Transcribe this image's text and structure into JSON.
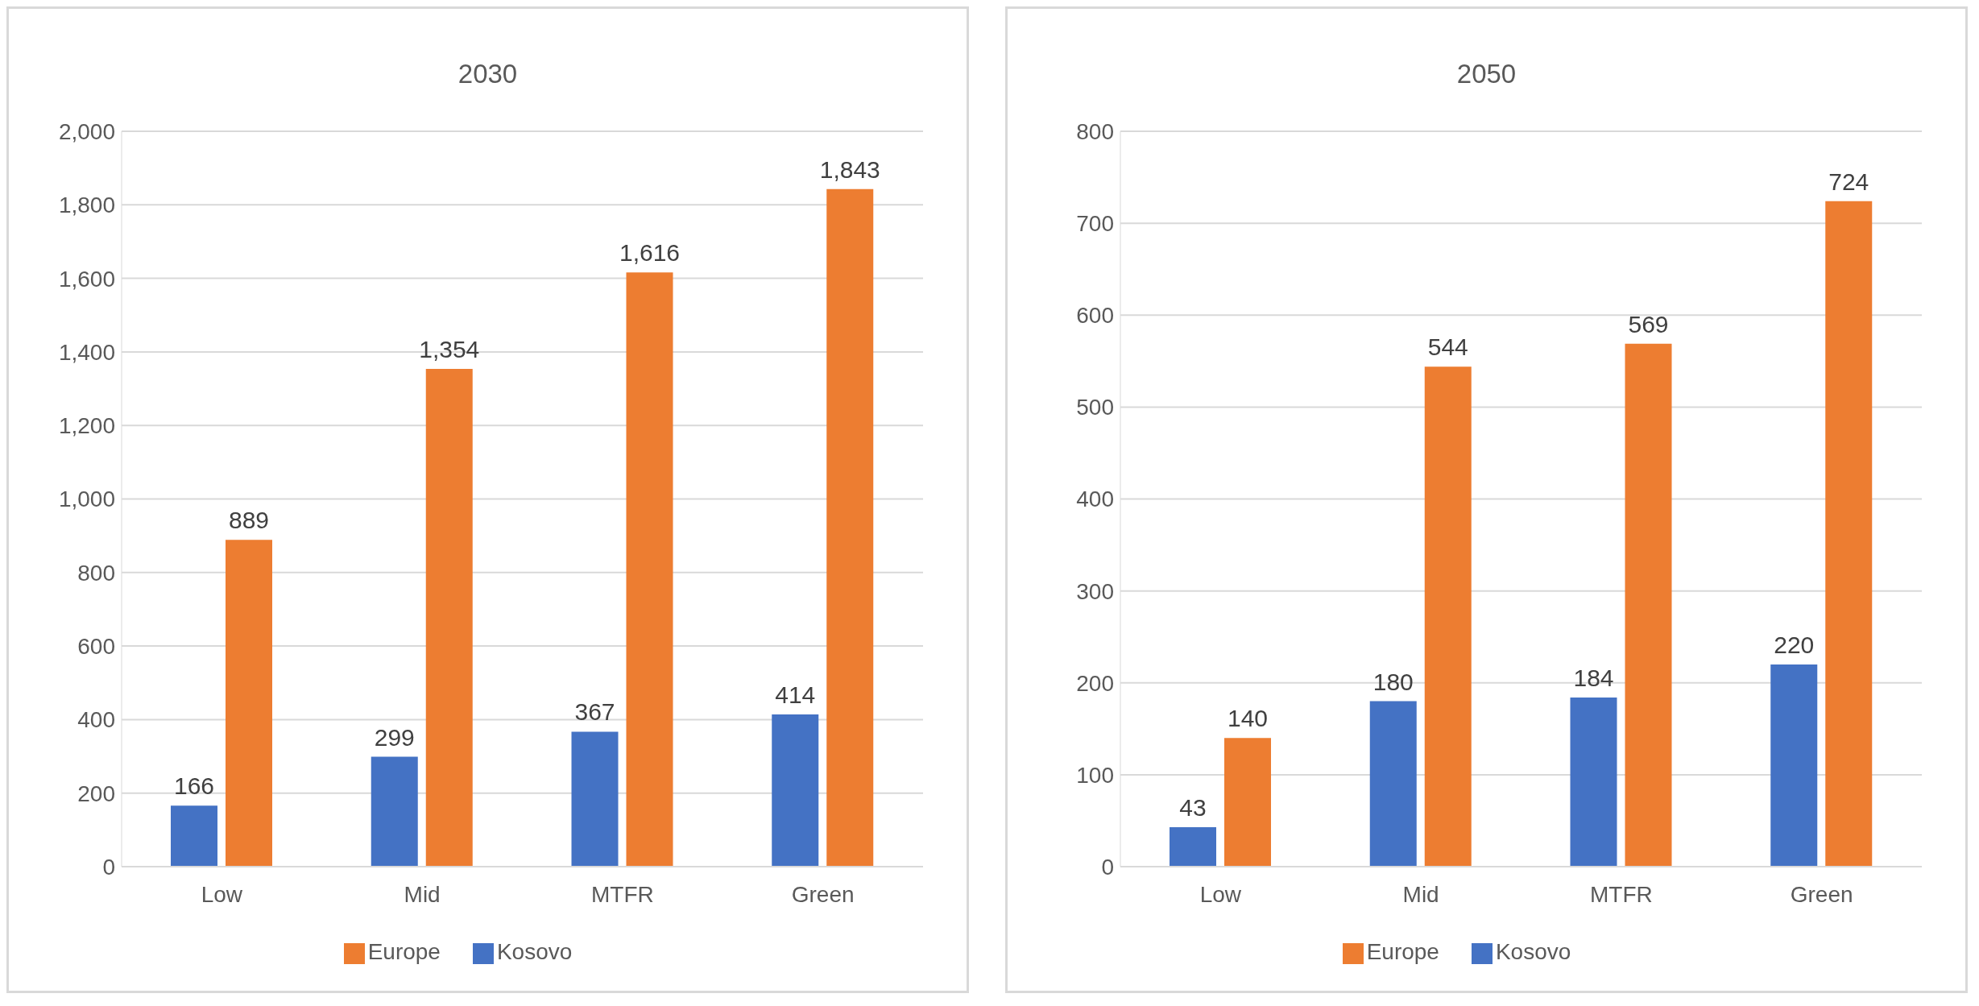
{
  "chart_data": [
    {
      "type": "bar",
      "title": "2030",
      "categories": [
        "Low",
        "Mid",
        "MTFR",
        "Green"
      ],
      "series": [
        {
          "name": "Kosovo",
          "color": "#4472c4",
          "values": [
            166,
            299,
            367,
            414
          ],
          "value_labels": [
            "166",
            "299",
            "367",
            "414"
          ]
        },
        {
          "name": "Europe",
          "color": "#ed7d31",
          "values": [
            889,
            1354,
            1616,
            1843
          ],
          "value_labels": [
            "889",
            "1,354",
            "1,616",
            "1,843"
          ]
        }
      ],
      "ylim": [
        0,
        2000
      ],
      "yticks": [
        0,
        200,
        400,
        600,
        800,
        {
          "value": 1000,
          "label": "1,000"
        },
        {
          "value": 1200,
          "label": "1,200"
        },
        {
          "value": 1400,
          "label": "1,400"
        },
        {
          "value": 1600,
          "label": "1,600"
        },
        {
          "value": 1800,
          "label": "1,800"
        },
        {
          "value": 2000,
          "label": "2,000"
        }
      ],
      "grid": "y",
      "legend": "bottom"
    },
    {
      "type": "bar",
      "title": "2050",
      "categories": [
        "Low",
        "Mid",
        "MTFR",
        "Green"
      ],
      "series": [
        {
          "name": "Kosovo",
          "color": "#4472c4",
          "values": [
            43,
            180,
            184,
            220
          ]
        },
        {
          "name": "Europe",
          "color": "#ed7d31",
          "values": [
            140,
            544,
            569,
            724
          ]
        }
      ],
      "ylim": [
        0,
        800
      ],
      "yticks": [
        0,
        100,
        200,
        300,
        400,
        500,
        600,
        700,
        800
      ],
      "grid": "y",
      "legend": "bottom",
      "data_labels": true
    }
  ]
}
